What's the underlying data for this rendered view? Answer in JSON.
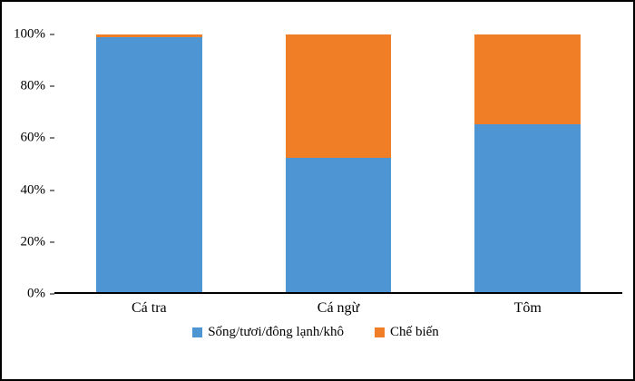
{
  "chart_data": {
    "type": "bar",
    "stacked": true,
    "percent_stacked": true,
    "title": "",
    "xlabel": "",
    "ylabel": "",
    "categories": [
      "Cá tra",
      "Cá ngừ",
      "Tôm"
    ],
    "series": [
      {
        "name": "Sống/tươi/đông lạnh/khô",
        "color": "#4E96D3",
        "values": [
          99,
          52,
          65
        ]
      },
      {
        "name": "Chế biến",
        "color": "#F07E27",
        "values": [
          1,
          48,
          35
        ]
      }
    ],
    "ylim": [
      0,
      100
    ],
    "yticks": [
      0,
      20,
      40,
      60,
      80,
      100
    ],
    "ytick_suffix": "%",
    "grid": false,
    "legend_position": "bottom",
    "frame_border_color": "#000000",
    "background_color": "#ffffff"
  }
}
